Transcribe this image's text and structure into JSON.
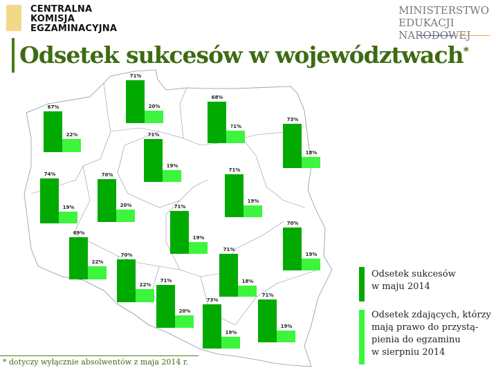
{
  "header": {
    "cke_logo": [
      "CENTRALNA",
      "KOMISJA",
      "EGZAMINACYJNA"
    ],
    "men_logo": [
      "MINISTERSTWO",
      "EDUKACJI",
      "NARODOWEJ"
    ],
    "title": "Odsetek sukcesów w województwach",
    "title_mark": "*"
  },
  "chart_data": {
    "type": "bar",
    "title": "Odsetek sukcesów w województwach",
    "series": [
      {
        "name": "Odsetek sukcesów w maju 2014",
        "color": "#00aa00"
      },
      {
        "name": "Odsetek zdających, którzy mają prawo do przystąpienia do egzaminu w sierpniu 2014",
        "color": "#3cf53c"
      }
    ],
    "regions": [
      {
        "values": [
          71,
          20
        ],
        "labels": [
          "71%",
          "20%"
        ]
      },
      {
        "values": [
          67,
          22
        ],
        "labels": [
          "67%",
          "22%"
        ]
      },
      {
        "values": [
          68,
          21
        ],
        "labels": [
          "68%",
          "?1%"
        ]
      },
      {
        "values": [
          73,
          18
        ],
        "labels": [
          "73%",
          "18%"
        ]
      },
      {
        "values": [
          71,
          19
        ],
        "labels": [
          "71%",
          "19%"
        ]
      },
      {
        "values": [
          74,
          19
        ],
        "labels": [
          "74%",
          "19%"
        ]
      },
      {
        "values": [
          70,
          20
        ],
        "labels": [
          "70%",
          "20%"
        ]
      },
      {
        "values": [
          71,
          19
        ],
        "labels": [
          "71%",
          "19%"
        ]
      },
      {
        "values": [
          71,
          19
        ],
        "labels": [
          "71%",
          "19%"
        ]
      },
      {
        "values": [
          70,
          19
        ],
        "labels": [
          "70%",
          "19%"
        ]
      },
      {
        "values": [
          69,
          22
        ],
        "labels": [
          "69%",
          "22%"
        ]
      },
      {
        "values": [
          70,
          22
        ],
        "labels": [
          "70%",
          "22%"
        ]
      },
      {
        "values": [
          71,
          20
        ],
        "labels": [
          "71%",
          "20%"
        ]
      },
      {
        "values": [
          71,
          18
        ],
        "labels": [
          "71%",
          "18%"
        ]
      },
      {
        "values": [
          73,
          19
        ],
        "labels": [
          "73%",
          "19%"
        ]
      },
      {
        "values": [
          71,
          19
        ],
        "labels": [
          "71%",
          "19%"
        ]
      }
    ]
  },
  "legend": {
    "item1": [
      "Odsetek sukcesów",
      "w maju 2014"
    ],
    "item2": [
      "Odsetek zdających, którzy",
      "mają prawo do przystą-",
      "pienia do egzaminu",
      "w sierpniu 2014"
    ]
  },
  "footnote": "* dotyczy wyłącznie absolwentów z maja 2014 r."
}
